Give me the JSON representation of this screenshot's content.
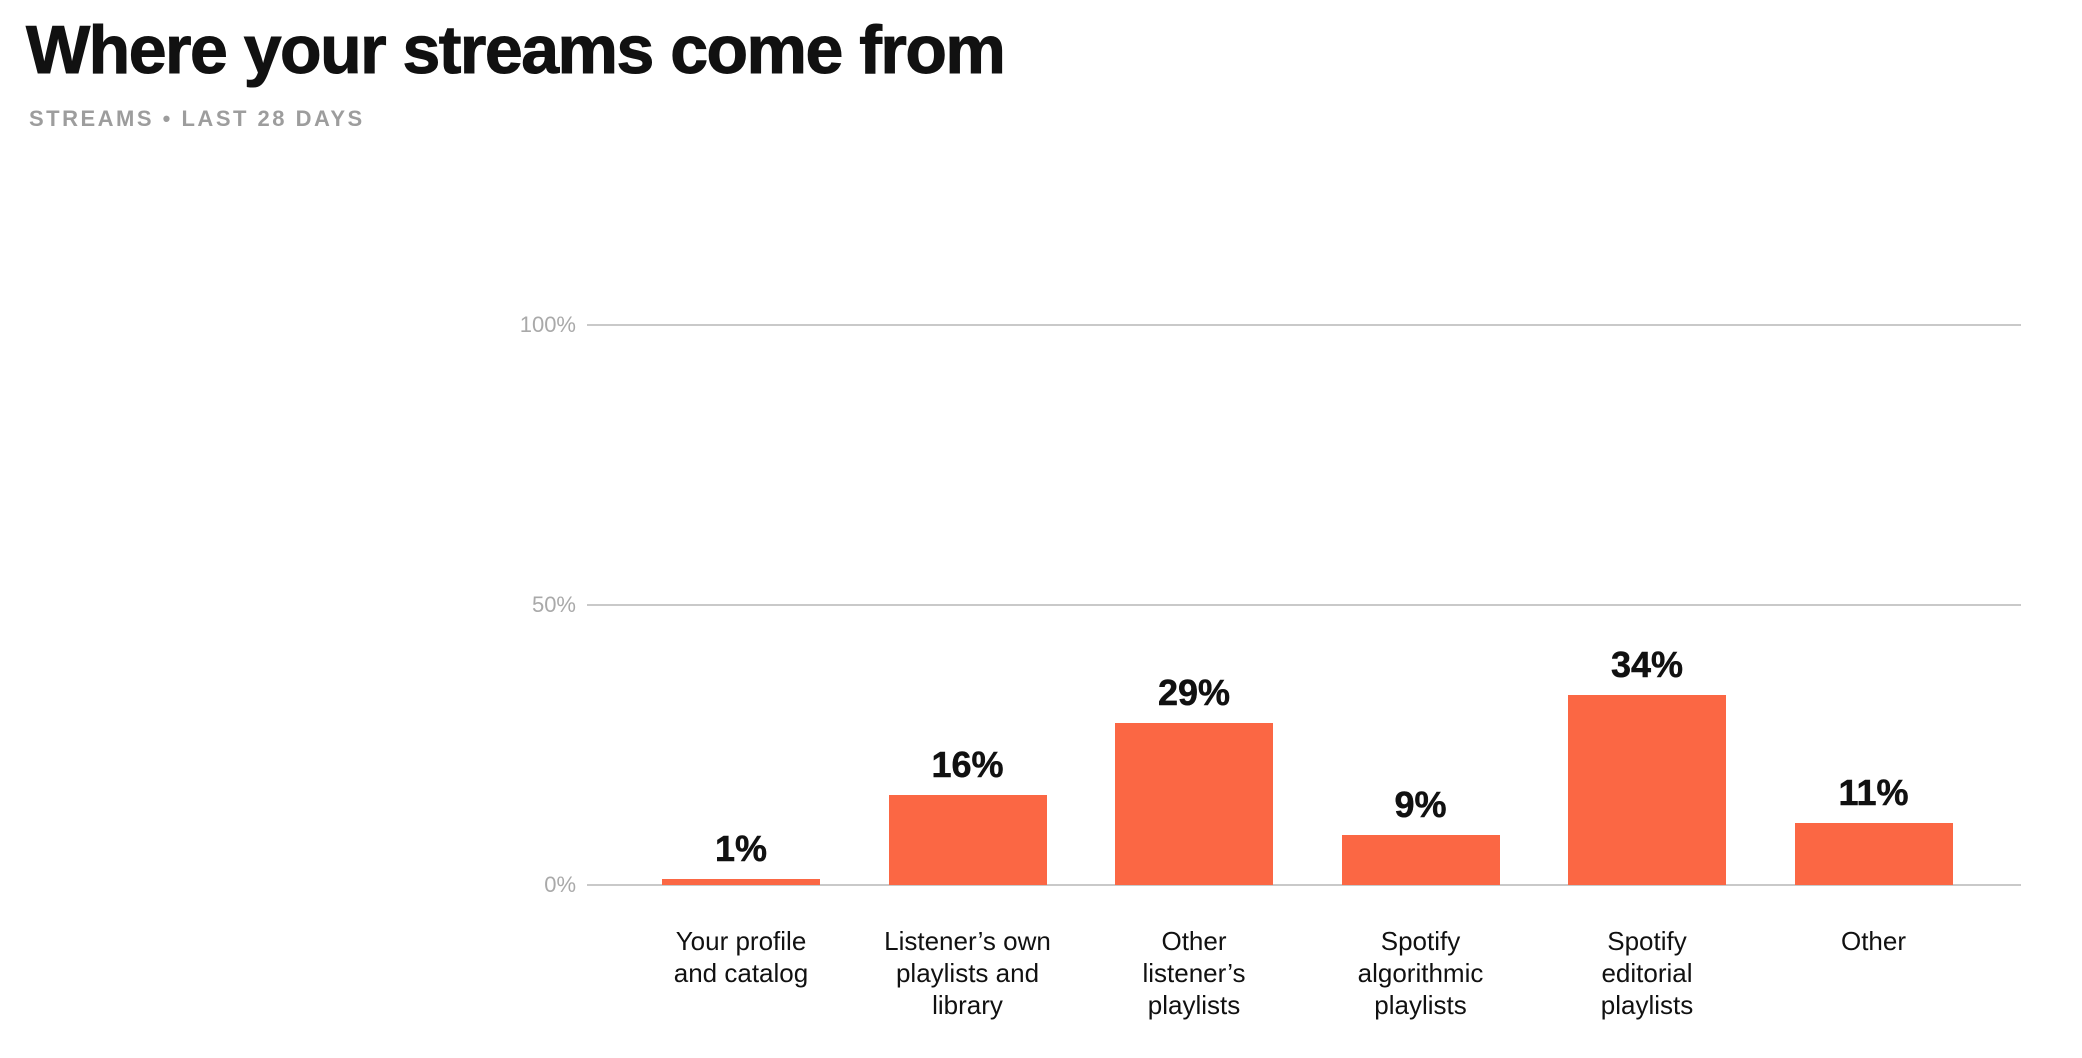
{
  "header": {
    "title": "Where your streams come from",
    "subtitle": "STREAMS • LAST 28 DAYS"
  },
  "chart_data": {
    "type": "bar",
    "title": "Where your streams come from",
    "subtitle": "STREAMS • LAST 28 DAYS",
    "metric": "STREAMS",
    "period": "LAST 28 DAYS",
    "categories": [
      "Your profile and catalog",
      "Listener’s own playlists and library",
      "Other listener’s playlists",
      "Spotify algorithmic playlists",
      "Spotify editorial playlists",
      "Other"
    ],
    "category_lines": [
      [
        "Your profile",
        "and catalog"
      ],
      [
        "Listener’s own",
        "playlists and",
        "library"
      ],
      [
        "Other",
        "listener’s",
        "playlists"
      ],
      [
        "Spotify",
        "algorithmic",
        "playlists"
      ],
      [
        "Spotify",
        "editorial",
        "playlists"
      ],
      [
        "Other"
      ]
    ],
    "values": [
      1,
      16,
      29,
      9,
      34,
      11
    ],
    "value_labels": [
      "1%",
      "16%",
      "29%",
      "9%",
      "34%",
      "11%"
    ],
    "unit": "%",
    "xlabel": "",
    "ylabel": "",
    "ylim": [
      0,
      100
    ],
    "y_ticks": [
      {
        "label": "100%",
        "value": 100
      },
      {
        "label": "50%",
        "value": 50
      },
      {
        "label": "0%",
        "value": 0
      }
    ],
    "grid": "horizontal",
    "legend": "none",
    "bar_color": "#FB6744",
    "gridline_color": "#C9C9C9",
    "tick_color": "#A9A9A9",
    "label_color": "#111111"
  }
}
